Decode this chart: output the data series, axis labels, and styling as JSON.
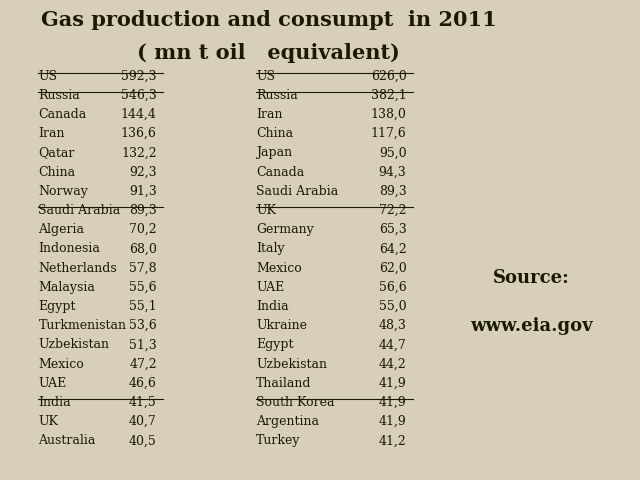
{
  "title_line1": "Gas production and consumpt  in 2011",
  "title_line2": "( mn t oil   equivalent)",
  "production": [
    [
      "US",
      "592,3"
    ],
    [
      "Russia",
      "546,3"
    ],
    [
      "Canada",
      "144,4"
    ],
    [
      "Iran",
      "136,6"
    ],
    [
      "Qatar",
      "132,2"
    ],
    [
      "China",
      "92,3"
    ],
    [
      "Norway",
      "91,3"
    ],
    [
      "Saudi Arabia",
      "89,3"
    ],
    [
      "Algeria",
      "70,2"
    ],
    [
      "Indonesia",
      "68,0"
    ],
    [
      "Netherlands",
      "57,8"
    ],
    [
      "Malaysia",
      "55,6"
    ],
    [
      "Egypt",
      "55,1"
    ],
    [
      "Turkmenistan",
      "53,6"
    ],
    [
      "Uzbekistan",
      "51,3"
    ],
    [
      "Mexico",
      "47,2"
    ],
    [
      "UAE",
      "46,6"
    ],
    [
      "India",
      "41,5"
    ],
    [
      "UK",
      "40,7"
    ],
    [
      "Australia",
      "40,5"
    ]
  ],
  "consumption": [
    [
      "US",
      "626,0"
    ],
    [
      "Russia",
      "382,1"
    ],
    [
      "Iran",
      "138,0"
    ],
    [
      "China",
      "117,6"
    ],
    [
      "Japan",
      "95,0"
    ],
    [
      "Canada",
      "94,3"
    ],
    [
      "Saudi Arabia",
      "89,3"
    ],
    [
      "UK",
      "72,2"
    ],
    [
      "Germany",
      "65,3"
    ],
    [
      "Italy",
      "64,2"
    ],
    [
      "Mexico",
      "62,0"
    ],
    [
      "UAE",
      "56,6"
    ],
    [
      "India",
      "55,0"
    ],
    [
      "Ukraine",
      "48,3"
    ],
    [
      "Egypt",
      "44,7"
    ],
    [
      "Uzbekistan",
      "44,2"
    ],
    [
      "Thailand",
      "41,9"
    ],
    [
      "South Korea",
      "41,9"
    ],
    [
      "Argentina",
      "41,9"
    ],
    [
      "Turkey",
      "41,2"
    ]
  ],
  "source_line1": "Source:",
  "source_line2": "www.eia.gov",
  "bg_color": "#d8cfb8",
  "text_color": "#1a1a00",
  "title_fontsize": 15,
  "label_fontsize": 9,
  "source_fontsize": 13
}
